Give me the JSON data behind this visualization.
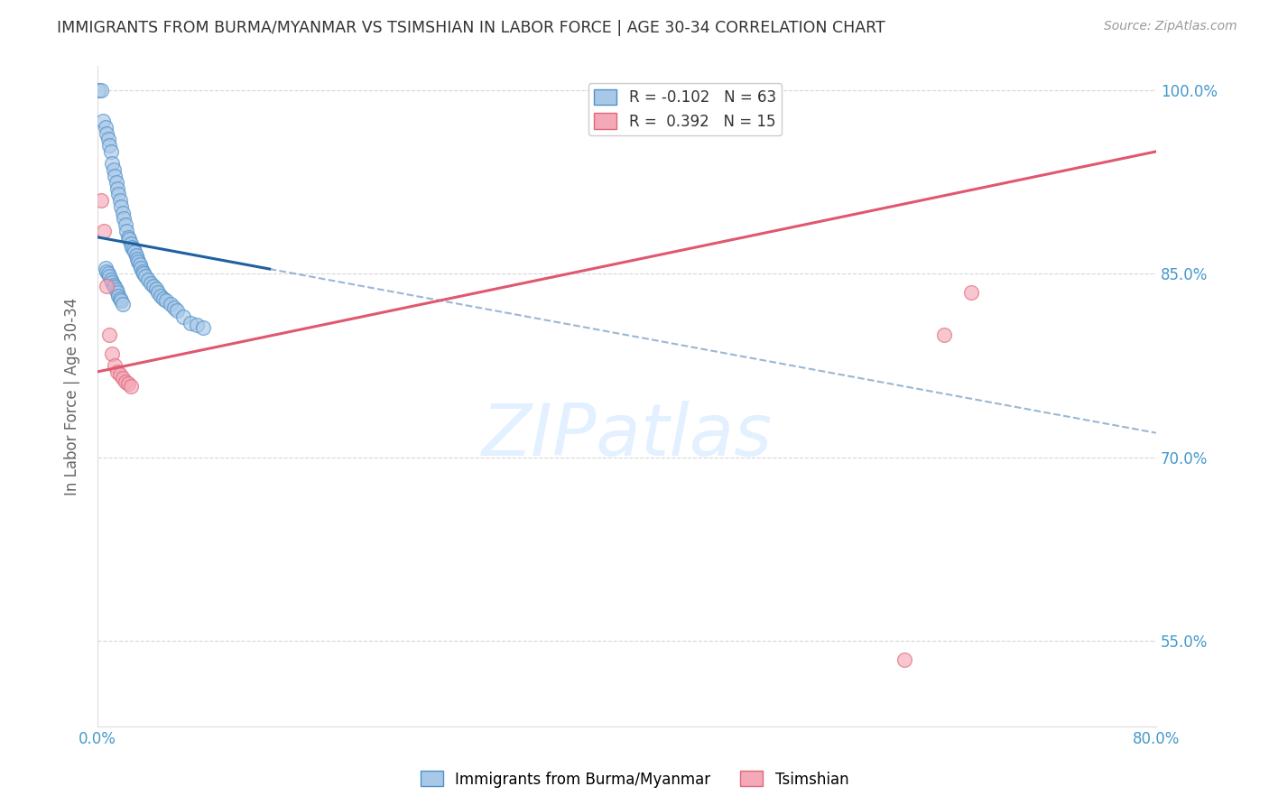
{
  "title": "IMMIGRANTS FROM BURMA/MYANMAR VS TSIMSHIAN IN LABOR FORCE | AGE 30-34 CORRELATION CHART",
  "source": "Source: ZipAtlas.com",
  "ylabel": "In Labor Force | Age 30-34",
  "xlim": [
    0.0,
    0.8
  ],
  "ylim": [
    0.48,
    1.02
  ],
  "x_ticks": [
    0.0,
    0.1,
    0.2,
    0.3,
    0.4,
    0.5,
    0.6,
    0.7,
    0.8
  ],
  "y_ticks": [
    0.55,
    0.7,
    0.85,
    1.0
  ],
  "y_tick_labels": [
    "55.0%",
    "70.0%",
    "85.0%",
    "100.0%"
  ],
  "legend_blue_label": "R = -0.102   N = 63",
  "legend_pink_label": "R =  0.392   N = 15",
  "blue_color": "#a8c8e8",
  "pink_color": "#f4a8b8",
  "blue_edge_color": "#5090c8",
  "pink_edge_color": "#e06878",
  "blue_line_color": "#2060a0",
  "pink_line_color": "#e05870",
  "watermark_color": "#ddeeff",
  "blue_scatter_x": [
    0.001,
    0.003,
    0.004,
    0.006,
    0.007,
    0.008,
    0.009,
    0.01,
    0.011,
    0.012,
    0.013,
    0.014,
    0.015,
    0.016,
    0.017,
    0.018,
    0.019,
    0.02,
    0.021,
    0.022,
    0.023,
    0.024,
    0.025,
    0.026,
    0.027,
    0.028,
    0.029,
    0.03,
    0.031,
    0.032,
    0.033,
    0.034,
    0.035,
    0.036,
    0.038,
    0.04,
    0.042,
    0.044,
    0.046,
    0.048,
    0.05,
    0.052,
    0.055,
    0.058,
    0.06,
    0.065,
    0.07,
    0.075,
    0.08,
    0.006,
    0.007,
    0.008,
    0.009,
    0.01,
    0.011,
    0.012,
    0.013,
    0.014,
    0.015,
    0.016,
    0.017,
    0.018,
    0.019
  ],
  "blue_scatter_y": [
    1.0,
    1.0,
    0.975,
    0.97,
    0.965,
    0.96,
    0.955,
    0.95,
    0.94,
    0.935,
    0.93,
    0.925,
    0.92,
    0.915,
    0.91,
    0.905,
    0.9,
    0.895,
    0.89,
    0.885,
    0.88,
    0.878,
    0.875,
    0.872,
    0.87,
    0.868,
    0.865,
    0.862,
    0.86,
    0.858,
    0.855,
    0.852,
    0.85,
    0.848,
    0.845,
    0.842,
    0.84,
    0.838,
    0.835,
    0.832,
    0.83,
    0.828,
    0.825,
    0.822,
    0.82,
    0.815,
    0.81,
    0.808,
    0.806,
    0.855,
    0.852,
    0.85,
    0.848,
    0.845,
    0.843,
    0.841,
    0.839,
    0.837,
    0.835,
    0.832,
    0.83,
    0.828,
    0.825
  ],
  "pink_scatter_x": [
    0.003,
    0.005,
    0.007,
    0.009,
    0.011,
    0.013,
    0.015,
    0.017,
    0.019,
    0.021,
    0.023,
    0.025,
    0.61,
    0.64,
    0.66
  ],
  "pink_scatter_y": [
    0.91,
    0.885,
    0.84,
    0.8,
    0.785,
    0.775,
    0.77,
    0.768,
    0.765,
    0.762,
    0.76,
    0.758,
    0.535,
    0.8,
    0.835
  ],
  "blue_trend_x0": 0.0,
  "blue_trend_x_solid_end": 0.13,
  "blue_trend_x1": 0.8,
  "blue_trend_y0": 0.88,
  "blue_trend_y1": 0.72,
  "pink_trend_x0": 0.0,
  "pink_trend_x1": 0.8,
  "pink_trend_y0": 0.77,
  "pink_trend_y1": 0.95,
  "background_color": "#ffffff",
  "grid_color": "#cccccc",
  "title_color": "#333333",
  "tick_label_color": "#4499cc"
}
